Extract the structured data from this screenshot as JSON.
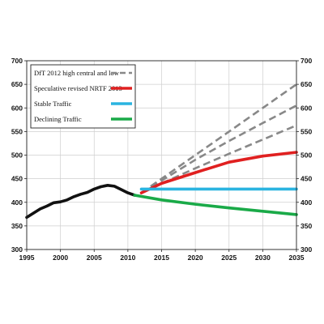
{
  "chart_data": {
    "type": "line",
    "title": "",
    "xlabel": "",
    "ylabel": "",
    "xlim": [
      1995,
      2035
    ],
    "ylim": [
      300,
      700
    ],
    "x_ticks": [
      1995,
      2000,
      2005,
      2010,
      2015,
      2020,
      2025,
      2030,
      2035
    ],
    "y_ticks": [
      300,
      350,
      400,
      450,
      500,
      550,
      600,
      650,
      700
    ],
    "x_tick_labels": [
      "1995",
      "2000",
      "2005",
      "2010",
      "2015",
      "2020",
      "2025",
      "2030",
      "2035"
    ],
    "y_tick_labels": [
      "300",
      "350",
      "400",
      "450",
      "500",
      "550",
      "600",
      "650",
      "700"
    ],
    "y_axis_both_sides": true,
    "grid": true,
    "legend_position": "top-left",
    "legend": [
      {
        "label": "DfT 2012 high central and low",
        "color": "#888888",
        "style": "dashed"
      },
      {
        "label": "Speculative revised NRTF 2013",
        "color": "#e02020",
        "style": "solid"
      },
      {
        "label": "Stable Traffic",
        "color": "#2ab4e0",
        "style": "solid"
      },
      {
        "label": "Declining Traffic",
        "color": "#1aaa48",
        "style": "solid"
      }
    ],
    "series": [
      {
        "color": "#111111",
        "style": "solid",
        "x": [
          1995,
          1996,
          1997,
          1998,
          1999,
          2000,
          2001,
          2002,
          2003,
          2004,
          2005,
          2006,
          2007,
          2008,
          2009,
          2010,
          2011
        ],
        "y": [
          368,
          377,
          386,
          392,
          399,
          401,
          405,
          412,
          417,
          421,
          428,
          433,
          436,
          434,
          427,
          420,
          415
        ]
      },
      {
        "color": "#888888",
        "style": "dashed",
        "x": [
          2012,
          2015,
          2020,
          2025,
          2030,
          2035
        ],
        "y": [
          420,
          450,
          500,
          550,
          600,
          650
        ]
      },
      {
        "color": "#888888",
        "style": "dashed",
        "x": [
          2012,
          2015,
          2020,
          2025,
          2030,
          2035
        ],
        "y": [
          420,
          446,
          490,
          530,
          568,
          605
        ]
      },
      {
        "color": "#888888",
        "style": "dashed",
        "x": [
          2012,
          2015,
          2020,
          2025,
          2030,
          2035
        ],
        "y": [
          420,
          440,
          472,
          503,
          533,
          563
        ]
      },
      {
        "color": "#e02020",
        "style": "solid",
        "x": [
          2012,
          2015,
          2020,
          2025,
          2030,
          2035
        ],
        "y": [
          420,
          440,
          463,
          485,
          498,
          506
        ]
      },
      {
        "color": "#2ab4e0",
        "style": "solid",
        "x": [
          2012,
          2015,
          2020,
          2025,
          2030,
          2035
        ],
        "y": [
          428,
          428,
          428,
          428,
          428,
          428
        ]
      },
      {
        "color": "#1aaa48",
        "style": "solid",
        "x": [
          2011,
          2015,
          2020,
          2025,
          2030,
          2035
        ],
        "y": [
          415,
          405,
          396,
          388,
          381,
          374
        ]
      }
    ]
  }
}
